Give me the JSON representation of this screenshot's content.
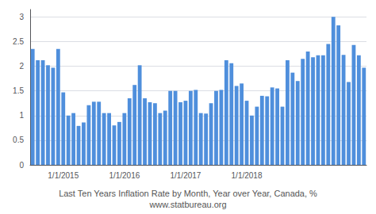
{
  "chart_data": {
    "type": "bar",
    "title": "Last Ten Years Inflation Rate by Month, Year over Year, Canada, %",
    "subtitle": "www.statbureau.org",
    "categories": [
      null,
      null,
      null,
      null,
      null,
      null,
      "1/1/2015",
      null,
      null,
      null,
      null,
      null,
      null,
      null,
      null,
      null,
      null,
      null,
      "1/1/2016",
      null,
      null,
      null,
      null,
      null,
      null,
      null,
      null,
      null,
      null,
      null,
      "1/1/2017",
      null,
      null,
      null,
      null,
      null,
      null,
      null,
      null,
      null,
      null,
      null,
      "1/1/2018",
      null,
      null,
      null,
      null,
      null,
      null,
      null,
      null,
      null,
      null,
      null,
      null,
      null,
      null,
      null,
      null,
      null,
      null,
      null,
      null,
      null,
      null,
      null
    ],
    "values": [
      2.35,
      2.12,
      2.12,
      2.02,
      1.97,
      2.35,
      1.47,
      1.0,
      1.05,
      0.79,
      0.86,
      1.21,
      1.28,
      1.28,
      1.05,
      1.05,
      0.8,
      0.87,
      1.05,
      1.35,
      1.62,
      2.02,
      1.35,
      1.27,
      1.25,
      1.05,
      1.1,
      1.5,
      1.5,
      1.27,
      1.3,
      1.5,
      1.52,
      1.05,
      1.04,
      1.25,
      1.5,
      1.52,
      2.12,
      2.06,
      1.6,
      1.65,
      1.3,
      1.0,
      1.18,
      1.4,
      1.39,
      1.57,
      1.55,
      1.18,
      2.12,
      1.87,
      1.7,
      2.15,
      2.3,
      2.18,
      2.22,
      2.22,
      2.45,
      3.0,
      2.83,
      2.23,
      1.68,
      2.43,
      2.22,
      1.97
    ],
    "color": "#4f8fdc",
    "ylim": [
      0,
      3.15
    ],
    "yticks": [
      0,
      0.5,
      1,
      1.5,
      2,
      2.5,
      3
    ],
    "grid": true
  }
}
